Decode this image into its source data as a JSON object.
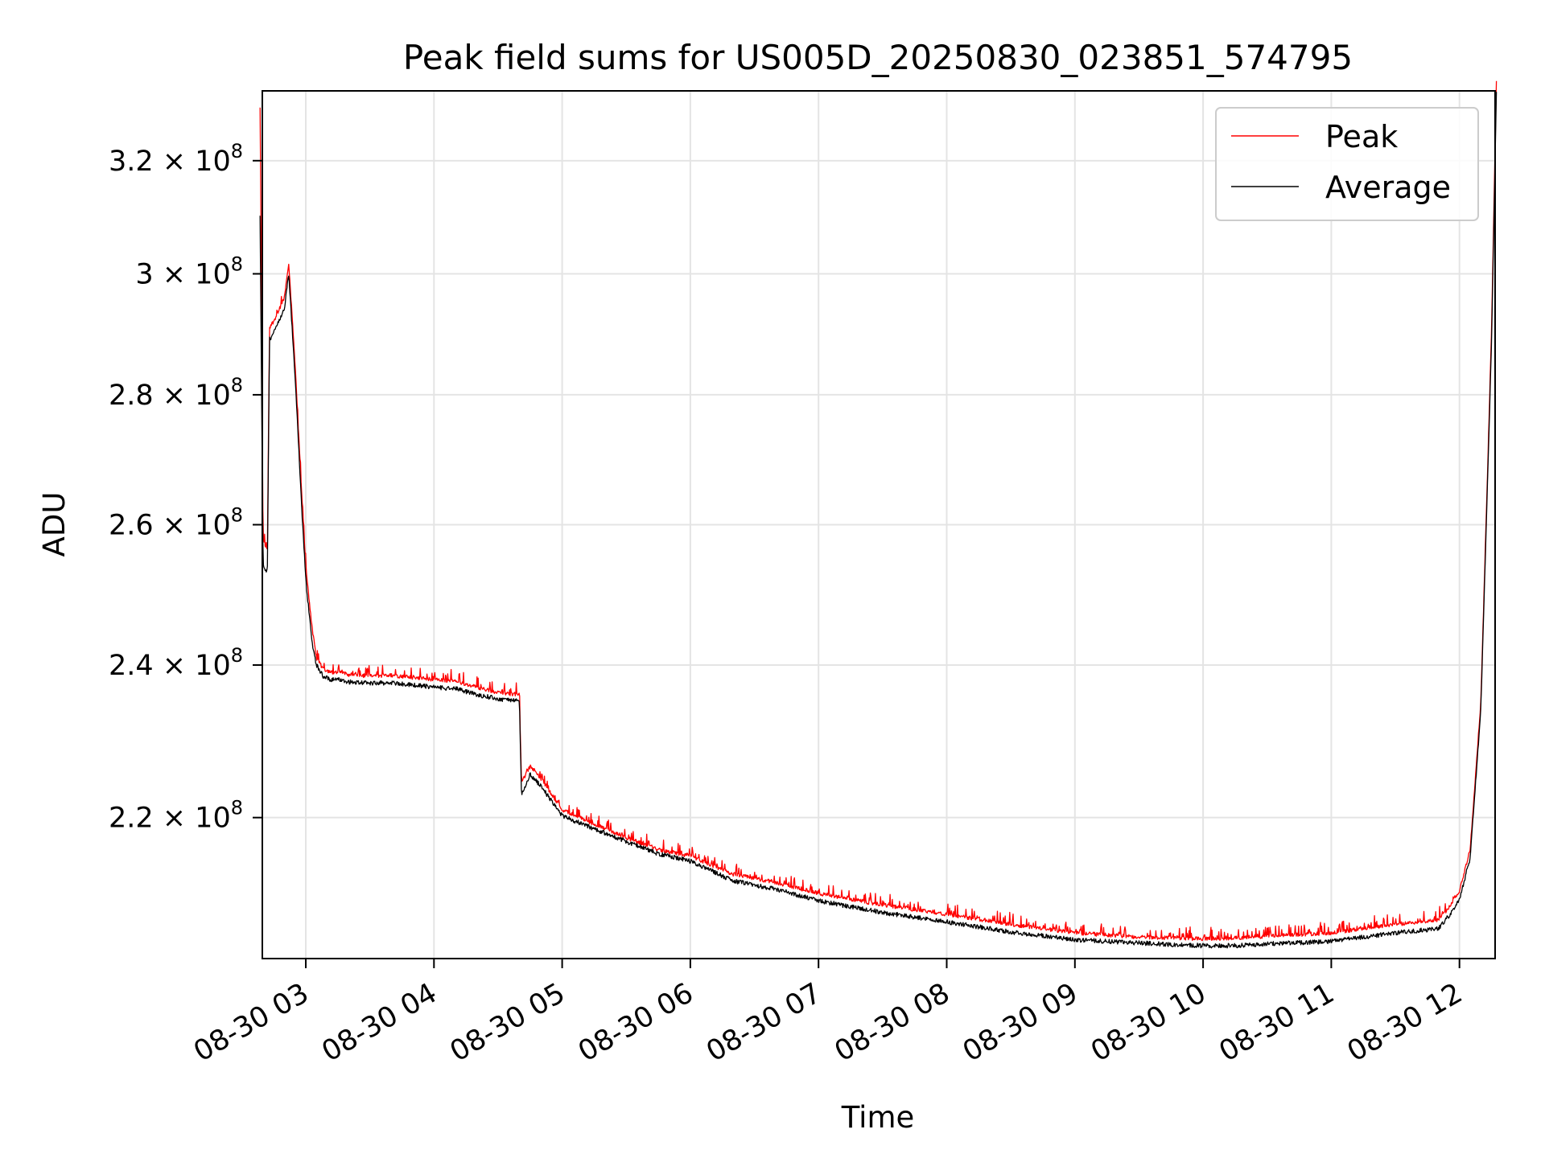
{
  "chart_data": {
    "type": "line",
    "title": "Peak field sums for US005D_20250830_023851_574795",
    "xlabel": "Time",
    "ylabel": "ADU",
    "y_scale": "log",
    "ylim": [
      203000000,
      333000000
    ],
    "grid": true,
    "legend_position": "top-right",
    "x_tick_labels": [
      "08-30 03",
      "08-30 04",
      "08-30 05",
      "08-30 06",
      "08-30 07",
      "08-30 08",
      "08-30 09",
      "08-30 10",
      "08-30 11",
      "08-30 12"
    ],
    "y_ticks": [
      {
        "value": 220000000,
        "mantissa": "2.2",
        "exponent": "8"
      },
      {
        "value": 240000000,
        "mantissa": "2.4",
        "exponent": "8"
      },
      {
        "value": 260000000,
        "mantissa": "2.6",
        "exponent": "8"
      },
      {
        "value": 280000000,
        "mantissa": "2.8",
        "exponent": "8"
      },
      {
        "value": 300000000,
        "mantissa": "3",
        "exponent": "8"
      },
      {
        "value": 320000000,
        "mantissa": "3.2",
        "exponent": "8"
      }
    ],
    "times_of_day": [
      "02:39",
      "02:40",
      "02:42",
      "02:43",
      "02:45",
      "02:50",
      "02:52",
      "02:55",
      "02:58",
      "03:00",
      "03:03",
      "03:05",
      "03:08",
      "03:12",
      "03:16",
      "03:20",
      "03:30",
      "03:40",
      "03:50",
      "04:00",
      "04:10",
      "04:20",
      "04:30",
      "04:40",
      "04:41",
      "04:45",
      "04:50",
      "05:00",
      "05:15",
      "05:30",
      "05:45",
      "06:00",
      "06:20",
      "06:40",
      "07:00",
      "07:30",
      "08:00",
      "08:30",
      "09:00",
      "09:30",
      "10:00",
      "10:15",
      "10:30",
      "11:00",
      "11:30",
      "11:50",
      "11:55",
      "12:00",
      "12:05",
      "12:10",
      "12:15",
      "12:17"
    ],
    "series": [
      {
        "name": "Peak",
        "color": "#ff0000",
        "values": [
          330000000,
          258000000,
          256000000,
          291000000,
          292000000,
          296000000,
          302000000,
          285000000,
          265000000,
          254000000,
          245000000,
          241000000,
          239500000,
          239000000,
          239000000,
          238700000,
          238500000,
          238600000,
          238300000,
          238000000,
          237800000,
          237000000,
          236200000,
          236000000,
          224500000,
          226500000,
          225000000,
          221000000,
          219200000,
          217500000,
          216000000,
          215200000,
          213000000,
          212000000,
          210700000,
          209300000,
          208200000,
          207000000,
          206000000,
          205500000,
          205300000,
          205400000,
          205600000,
          206000000,
          207000000,
          207500000,
          209000000,
          211000000,
          216000000,
          235000000,
          290000000,
          335000000
        ]
      },
      {
        "name": "Average",
        "color": "#000000",
        "values": [
          310000000,
          254000000,
          253000000,
          289000000,
          290000000,
          294000000,
          300000000,
          283000000,
          263000000,
          252000000,
          243000000,
          240000000,
          238500000,
          238000000,
          238000000,
          237700000,
          237500000,
          237600000,
          237300000,
          237000000,
          236800000,
          236000000,
          235400000,
          235200000,
          222800000,
          225500000,
          224000000,
          220200000,
          218600000,
          217000000,
          215500000,
          214600000,
          212200000,
          211200000,
          209800000,
          208400000,
          207300000,
          206100000,
          205200000,
          204800000,
          204500000,
          204500000,
          204700000,
          205000000,
          206000000,
          206500000,
          208000000,
          210000000,
          215000000,
          234000000,
          288000000,
          333000000
        ]
      }
    ]
  }
}
